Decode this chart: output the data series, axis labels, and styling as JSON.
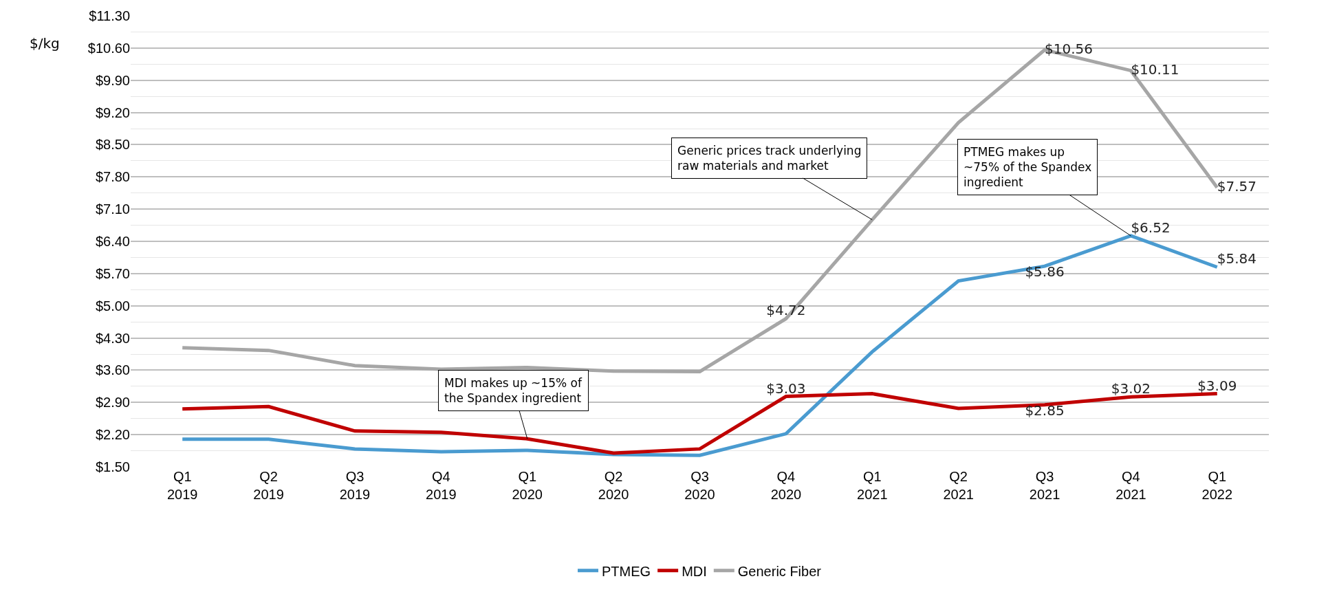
{
  "chart_data": {
    "type": "line",
    "ylabel": "$/kg",
    "categories": [
      "Q1\n2019",
      "Q2\n2019",
      "Q3\n2019",
      "Q4\n2019",
      "Q1\n2020",
      "Q2\n2020",
      "Q3\n2020",
      "Q4\n2020",
      "Q1\n2021",
      "Q2\n2021",
      "Q3\n2021",
      "Q4\n2021",
      "Q1\n2022"
    ],
    "series": [
      {
        "name": "PTMEG",
        "color": "#4a9bd0",
        "values": [
          2.1,
          2.1,
          1.89,
          1.83,
          1.86,
          1.77,
          1.75,
          2.22,
          4.0,
          5.54,
          5.86,
          6.52,
          5.84
        ],
        "value_labels": [
          null,
          null,
          null,
          null,
          null,
          null,
          null,
          null,
          null,
          null,
          "$5.86",
          "$6.52",
          "$5.84"
        ]
      },
      {
        "name": "MDI",
        "color": "#c00000",
        "values": [
          2.76,
          2.81,
          2.28,
          2.25,
          2.11,
          1.8,
          1.89,
          3.03,
          3.09,
          2.77,
          2.85,
          3.02,
          3.09
        ],
        "value_labels": [
          null,
          null,
          null,
          null,
          null,
          null,
          null,
          "$3.03",
          null,
          null,
          "$2.85",
          "$3.02",
          "$3.09"
        ]
      },
      {
        "name": "Generic Fiber",
        "color": "#a6a6a6",
        "values": [
          4.09,
          4.03,
          3.7,
          3.62,
          3.66,
          3.58,
          3.57,
          4.72,
          6.87,
          8.98,
          10.56,
          10.11,
          7.57
        ],
        "value_labels": [
          null,
          null,
          null,
          null,
          null,
          null,
          null,
          "$4.72",
          null,
          null,
          "$10.56",
          "$10.11",
          "$7.57"
        ]
      }
    ],
    "ylim": [
      1.5,
      11.3
    ],
    "yticks": [
      {
        "value": 1.5,
        "label": "$1.50"
      },
      {
        "value": 2.2,
        "label": "$2.20"
      },
      {
        "value": 2.9,
        "label": "$2.90"
      },
      {
        "value": 3.6,
        "label": "$3.60"
      },
      {
        "value": 4.3,
        "label": "$4.30"
      },
      {
        "value": 5.0,
        "label": "$5.00"
      },
      {
        "value": 5.7,
        "label": "$5.70"
      },
      {
        "value": 6.4,
        "label": "$6.40"
      },
      {
        "value": 7.1,
        "label": "$7.10"
      },
      {
        "value": 7.8,
        "label": "$7.80"
      },
      {
        "value": 8.5,
        "label": "$8.50"
      },
      {
        "value": 9.2,
        "label": "$9.20"
      },
      {
        "value": 9.9,
        "label": "$9.90"
      },
      {
        "value": 10.6,
        "label": "$10.60"
      },
      {
        "value": 11.3,
        "label": "$11.30"
      }
    ],
    "grid": "y",
    "legend": "bottom",
    "marker": "none",
    "line_style": "solid",
    "annotations": [
      {
        "text": "MDI makes up ~15% of\nthe Spandex ingredient",
        "x": "Q1\n2020",
        "y": 2.11
      },
      {
        "text": "Generic prices track underlying\nraw materials and market",
        "x": "Q1\n2021",
        "y": 6.87
      },
      {
        "text": "PTMEG makes up\n~75% of the Spandex\ningredient",
        "x": "Q4\n2021",
        "y": 6.52
      }
    ]
  }
}
